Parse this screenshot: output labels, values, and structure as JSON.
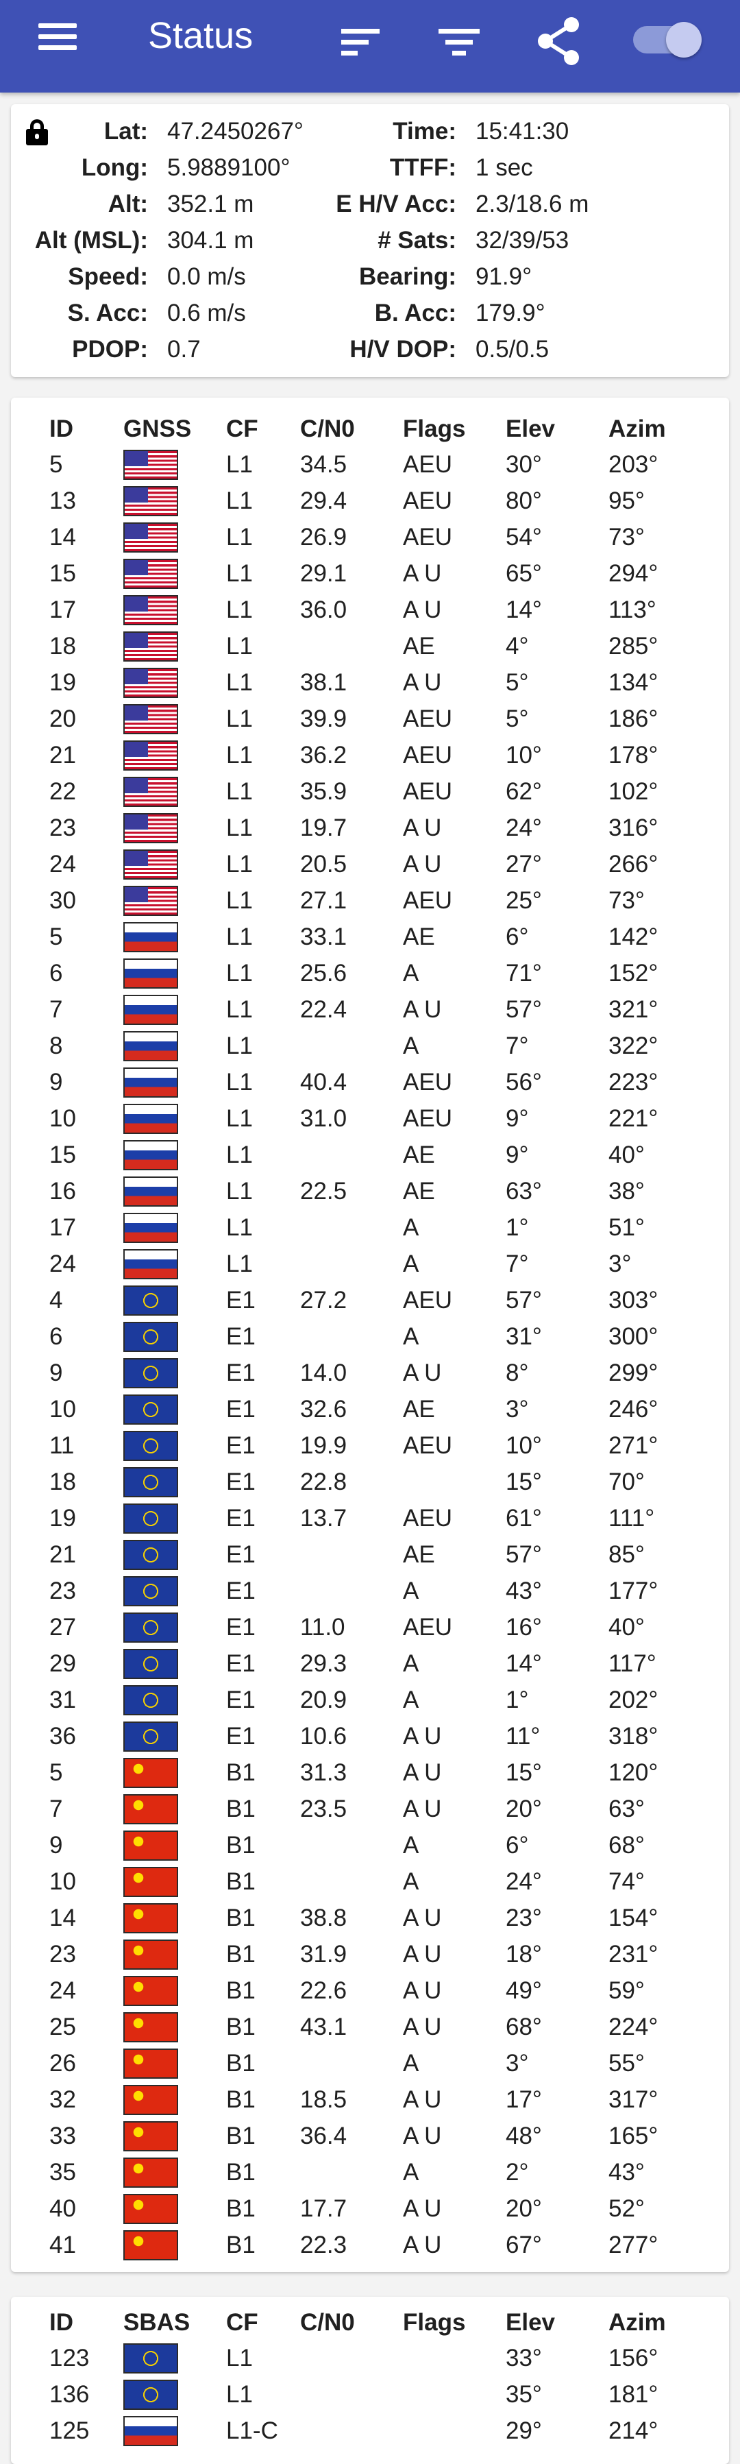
{
  "toolbar": {
    "title": "Status",
    "icons": [
      "menu-icon",
      "sort-icon",
      "filter-icon",
      "share-icon",
      "toggle-switch"
    ],
    "background": "#3f51b5"
  },
  "status": {
    "lock_icon": "lock-icon",
    "rows": [
      {
        "label1": "Lat:",
        "value1": "47.2450267°",
        "label2": "Time:",
        "value2": "15:41:30"
      },
      {
        "label1": "Long:",
        "value1": "5.9889100°",
        "label2": "TTFF:",
        "value2": "1 sec"
      },
      {
        "label1": "Alt:",
        "value1": "352.1 m",
        "label2": "E H/V Acc:",
        "value2": "2.3/18.6 m"
      },
      {
        "label1": "Alt (MSL):",
        "value1": "304.1 m",
        "label2": "# Sats:",
        "value2": "32/39/53"
      },
      {
        "label1": "Speed:",
        "value1": "0.0 m/s",
        "label2": "Bearing:",
        "value2": "91.9°"
      },
      {
        "label1": "S. Acc:",
        "value1": "0.6 m/s",
        "label2": "B. Acc:",
        "value2": "179.9°"
      },
      {
        "label1": "PDOP:",
        "value1": "0.7",
        "label2": "H/V DOP:",
        "value2": "0.5/0.5"
      }
    ]
  },
  "gnss_table": {
    "headers": {
      "id": "ID",
      "gnss": "GNSS",
      "cf": "CF",
      "cn0": "C/N0",
      "flags": "Flags",
      "elev": "Elev",
      "azim": "Azim"
    },
    "rows": [
      {
        "id": "5",
        "flag": "us",
        "cf": "L1",
        "cn0": "34.5",
        "flags": "AEU",
        "elev": "30°",
        "azim": "203°"
      },
      {
        "id": "13",
        "flag": "us",
        "cf": "L1",
        "cn0": "29.4",
        "flags": "AEU",
        "elev": "80°",
        "azim": "95°"
      },
      {
        "id": "14",
        "flag": "us",
        "cf": "L1",
        "cn0": "26.9",
        "flags": "AEU",
        "elev": "54°",
        "azim": "73°"
      },
      {
        "id": "15",
        "flag": "us",
        "cf": "L1",
        "cn0": "29.1",
        "flags": "A U",
        "elev": "65°",
        "azim": "294°"
      },
      {
        "id": "17",
        "flag": "us",
        "cf": "L1",
        "cn0": "36.0",
        "flags": "A U",
        "elev": "14°",
        "azim": "113°"
      },
      {
        "id": "18",
        "flag": "us",
        "cf": "L1",
        "cn0": "",
        "flags": "AE",
        "elev": "4°",
        "azim": "285°"
      },
      {
        "id": "19",
        "flag": "us",
        "cf": "L1",
        "cn0": "38.1",
        "flags": "A U",
        "elev": "5°",
        "azim": "134°"
      },
      {
        "id": "20",
        "flag": "us",
        "cf": "L1",
        "cn0": "39.9",
        "flags": "AEU",
        "elev": "5°",
        "azim": "186°"
      },
      {
        "id": "21",
        "flag": "us",
        "cf": "L1",
        "cn0": "36.2",
        "flags": "AEU",
        "elev": "10°",
        "azim": "178°"
      },
      {
        "id": "22",
        "flag": "us",
        "cf": "L1",
        "cn0": "35.9",
        "flags": "AEU",
        "elev": "62°",
        "azim": "102°"
      },
      {
        "id": "23",
        "flag": "us",
        "cf": "L1",
        "cn0": "19.7",
        "flags": "A U",
        "elev": "24°",
        "azim": "316°"
      },
      {
        "id": "24",
        "flag": "us",
        "cf": "L1",
        "cn0": "20.5",
        "flags": "A U",
        "elev": "27°",
        "azim": "266°"
      },
      {
        "id": "30",
        "flag": "us",
        "cf": "L1",
        "cn0": "27.1",
        "flags": "AEU",
        "elev": "25°",
        "azim": "73°"
      },
      {
        "id": "5",
        "flag": "ru",
        "cf": "L1",
        "cn0": "33.1",
        "flags": "AE",
        "elev": "6°",
        "azim": "142°"
      },
      {
        "id": "6",
        "flag": "ru",
        "cf": "L1",
        "cn0": "25.6",
        "flags": "A",
        "elev": "71°",
        "azim": "152°"
      },
      {
        "id": "7",
        "flag": "ru",
        "cf": "L1",
        "cn0": "22.4",
        "flags": "A U",
        "elev": "57°",
        "azim": "321°"
      },
      {
        "id": "8",
        "flag": "ru",
        "cf": "L1",
        "cn0": "",
        "flags": "A",
        "elev": "7°",
        "azim": "322°"
      },
      {
        "id": "9",
        "flag": "ru",
        "cf": "L1",
        "cn0": "40.4",
        "flags": "AEU",
        "elev": "56°",
        "azim": "223°"
      },
      {
        "id": "10",
        "flag": "ru",
        "cf": "L1",
        "cn0": "31.0",
        "flags": "AEU",
        "elev": "9°",
        "azim": "221°"
      },
      {
        "id": "15",
        "flag": "ru",
        "cf": "L1",
        "cn0": "",
        "flags": "AE",
        "elev": "9°",
        "azim": "40°"
      },
      {
        "id": "16",
        "flag": "ru",
        "cf": "L1",
        "cn0": "22.5",
        "flags": "AE",
        "elev": "63°",
        "azim": "38°"
      },
      {
        "id": "17",
        "flag": "ru",
        "cf": "L1",
        "cn0": "",
        "flags": "A",
        "elev": "1°",
        "azim": "51°"
      },
      {
        "id": "24",
        "flag": "ru",
        "cf": "L1",
        "cn0": "",
        "flags": "A",
        "elev": "7°",
        "azim": "3°"
      },
      {
        "id": "4",
        "flag": "eu",
        "cf": "E1",
        "cn0": "27.2",
        "flags": "AEU",
        "elev": "57°",
        "azim": "303°"
      },
      {
        "id": "6",
        "flag": "eu",
        "cf": "E1",
        "cn0": "",
        "flags": "A",
        "elev": "31°",
        "azim": "300°"
      },
      {
        "id": "9",
        "flag": "eu",
        "cf": "E1",
        "cn0": "14.0",
        "flags": "A U",
        "elev": "8°",
        "azim": "299°"
      },
      {
        "id": "10",
        "flag": "eu",
        "cf": "E1",
        "cn0": "32.6",
        "flags": "AE",
        "elev": "3°",
        "azim": "246°"
      },
      {
        "id": "11",
        "flag": "eu",
        "cf": "E1",
        "cn0": "19.9",
        "flags": "AEU",
        "elev": "10°",
        "azim": "271°"
      },
      {
        "id": "18",
        "flag": "eu",
        "cf": "E1",
        "cn0": "22.8",
        "flags": "",
        "elev": "15°",
        "azim": "70°"
      },
      {
        "id": "19",
        "flag": "eu",
        "cf": "E1",
        "cn0": "13.7",
        "flags": "AEU",
        "elev": "61°",
        "azim": "111°"
      },
      {
        "id": "21",
        "flag": "eu",
        "cf": "E1",
        "cn0": "",
        "flags": "AE",
        "elev": "57°",
        "azim": "85°"
      },
      {
        "id": "23",
        "flag": "eu",
        "cf": "E1",
        "cn0": "",
        "flags": "A",
        "elev": "43°",
        "azim": "177°"
      },
      {
        "id": "27",
        "flag": "eu",
        "cf": "E1",
        "cn0": "11.0",
        "flags": "AEU",
        "elev": "16°",
        "azim": "40°"
      },
      {
        "id": "29",
        "flag": "eu",
        "cf": "E1",
        "cn0": "29.3",
        "flags": "A",
        "elev": "14°",
        "azim": "117°"
      },
      {
        "id": "31",
        "flag": "eu",
        "cf": "E1",
        "cn0": "20.9",
        "flags": "A",
        "elev": "1°",
        "azim": "202°"
      },
      {
        "id": "36",
        "flag": "eu",
        "cf": "E1",
        "cn0": "10.6",
        "flags": "A U",
        "elev": "11°",
        "azim": "318°"
      },
      {
        "id": "5",
        "flag": "cn",
        "cf": "B1",
        "cn0": "31.3",
        "flags": "A U",
        "elev": "15°",
        "azim": "120°"
      },
      {
        "id": "7",
        "flag": "cn",
        "cf": "B1",
        "cn0": "23.5",
        "flags": "A U",
        "elev": "20°",
        "azim": "63°"
      },
      {
        "id": "9",
        "flag": "cn",
        "cf": "B1",
        "cn0": "",
        "flags": "A",
        "elev": "6°",
        "azim": "68°"
      },
      {
        "id": "10",
        "flag": "cn",
        "cf": "B1",
        "cn0": "",
        "flags": "A",
        "elev": "24°",
        "azim": "74°"
      },
      {
        "id": "14",
        "flag": "cn",
        "cf": "B1",
        "cn0": "38.8",
        "flags": "A U",
        "elev": "23°",
        "azim": "154°"
      },
      {
        "id": "23",
        "flag": "cn",
        "cf": "B1",
        "cn0": "31.9",
        "flags": "A U",
        "elev": "18°",
        "azim": "231°"
      },
      {
        "id": "24",
        "flag": "cn",
        "cf": "B1",
        "cn0": "22.6",
        "flags": "A U",
        "elev": "49°",
        "azim": "59°"
      },
      {
        "id": "25",
        "flag": "cn",
        "cf": "B1",
        "cn0": "43.1",
        "flags": "A U",
        "elev": "68°",
        "azim": "224°"
      },
      {
        "id": "26",
        "flag": "cn",
        "cf": "B1",
        "cn0": "",
        "flags": "A",
        "elev": "3°",
        "azim": "55°"
      },
      {
        "id": "32",
        "flag": "cn",
        "cf": "B1",
        "cn0": "18.5",
        "flags": "A U",
        "elev": "17°",
        "azim": "317°"
      },
      {
        "id": "33",
        "flag": "cn",
        "cf": "B1",
        "cn0": "36.4",
        "flags": "A U",
        "elev": "48°",
        "azim": "165°"
      },
      {
        "id": "35",
        "flag": "cn",
        "cf": "B1",
        "cn0": "",
        "flags": "A",
        "elev": "2°",
        "azim": "43°"
      },
      {
        "id": "40",
        "flag": "cn",
        "cf": "B1",
        "cn0": "17.7",
        "flags": "A U",
        "elev": "20°",
        "azim": "52°"
      },
      {
        "id": "41",
        "flag": "cn",
        "cf": "B1",
        "cn0": "22.3",
        "flags": "A U",
        "elev": "67°",
        "azim": "277°"
      }
    ]
  },
  "sbas_table": {
    "headers": {
      "id": "ID",
      "sbas": "SBAS",
      "cf": "CF",
      "cn0": "C/N0",
      "flags": "Flags",
      "elev": "Elev",
      "azim": "Azim"
    },
    "rows": [
      {
        "id": "123",
        "flag": "eu",
        "cf": "L1",
        "cn0": "",
        "flags": "",
        "elev": "33°",
        "azim": "156°"
      },
      {
        "id": "136",
        "flag": "eu",
        "cf": "L1",
        "cn0": "",
        "flags": "",
        "elev": "35°",
        "azim": "181°"
      },
      {
        "id": "125",
        "flag": "ru",
        "cf": "L1-C",
        "cn0": "",
        "flags": "",
        "elev": "29°",
        "azim": "214°"
      }
    ]
  }
}
